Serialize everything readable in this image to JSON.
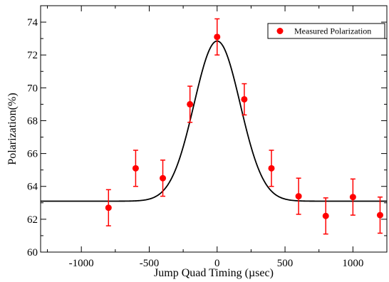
{
  "chart_data": {
    "type": "scatter",
    "title": "",
    "xlabel": "Jump Quad Timing (µsec)",
    "ylabel": "Polarization(%)",
    "xlim": [
      -1300,
      1250
    ],
    "ylim": [
      60,
      75
    ],
    "xticks": [
      -1000,
      -500,
      0,
      500,
      1000
    ],
    "yticks": [
      60,
      62,
      64,
      66,
      68,
      70,
      72,
      74
    ],
    "grid": false,
    "legend_position": "top-right",
    "series": [
      {
        "name": "Measured Polarization",
        "color": "#ff0000",
        "marker": "circle",
        "points": [
          {
            "x": -800,
            "y": 62.7,
            "err": 1.1
          },
          {
            "x": -600,
            "y": 65.1,
            "err": 1.1
          },
          {
            "x": -400,
            "y": 64.5,
            "err": 1.1
          },
          {
            "x": -200,
            "y": 69.0,
            "err": 1.1
          },
          {
            "x": 0,
            "y": 73.1,
            "err": 1.1
          },
          {
            "x": 200,
            "y": 69.3,
            "err": 0.95
          },
          {
            "x": 400,
            "y": 65.1,
            "err": 1.1
          },
          {
            "x": 600,
            "y": 63.4,
            "err": 1.1
          },
          {
            "x": 800,
            "y": 62.2,
            "err": 1.1
          },
          {
            "x": 1000,
            "y": 63.35,
            "err": 1.1
          },
          {
            "x": 1200,
            "y": 62.25,
            "err": 1.1
          }
        ]
      },
      {
        "type": "line",
        "color": "#000000",
        "fit": {
          "model": "gaussian",
          "baseline": 63.1,
          "amplitude": 9.75,
          "center": 0,
          "sigma": 170,
          "x_range": [
            -1300,
            1250
          ]
        }
      }
    ]
  }
}
